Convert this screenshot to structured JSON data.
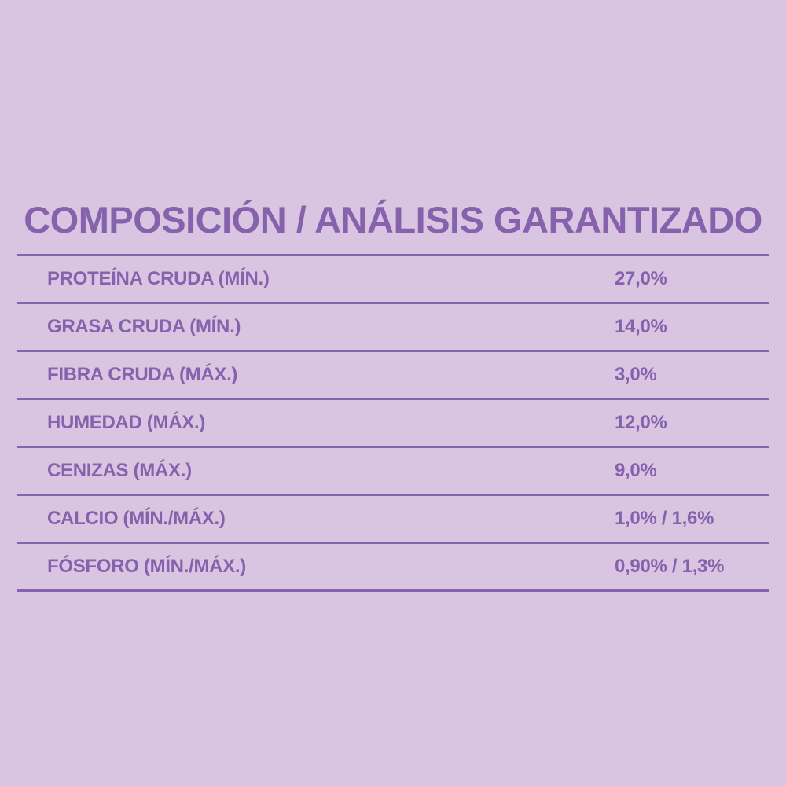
{
  "title": "COMPOSICIÓN / ANÁLISIS GARANTIZADO",
  "rows": [
    {
      "label": "PROTEÍNA CRUDA (MÍN.)",
      "value": "27,0%"
    },
    {
      "label": "GRASA CRUDA (MÍN.)",
      "value": "14,0%"
    },
    {
      "label": "FIBRA CRUDA (MÁX.)",
      "value": "3,0%"
    },
    {
      "label": "HUMEDAD (MÁX.)",
      "value": "12,0%"
    },
    {
      "label": "CENIZAS (MÁX.)",
      "value": "9,0%"
    },
    {
      "label": "CALCIO (MÍN./MÁX.)",
      "value": "1,0% / 1,6%"
    },
    {
      "label": "FÓSFORO (MÍN./MÁX.)",
      "value": "0,90% / 1,3%"
    }
  ],
  "colors": {
    "background": "#d9c5e1",
    "accent": "#8662ad"
  }
}
